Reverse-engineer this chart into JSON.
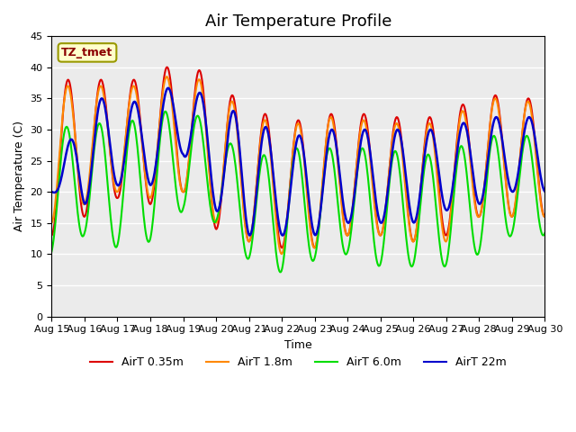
{
  "title": "Air Temperature Profile",
  "xlabel": "Time",
  "ylabel": "Air Temperature (C)",
  "annotation": "TZ_tmet",
  "ylim": [
    0,
    45
  ],
  "yticks": [
    0,
    5,
    10,
    15,
    20,
    25,
    30,
    35,
    40,
    45
  ],
  "xtick_labels": [
    "Aug 15",
    "Aug 16",
    "Aug 17",
    "Aug 18",
    "Aug 19",
    "Aug 20",
    "Aug 21",
    "Aug 22",
    "Aug 23",
    "Aug 24",
    "Aug 25",
    "Aug 26",
    "Aug 27",
    "Aug 28",
    "Aug 29",
    "Aug 30"
  ],
  "colors": {
    "AirT 0.35m": "#DD0000",
    "AirT 1.8m": "#FF8800",
    "AirT 6.0m": "#00DD00",
    "AirT 22m": "#0000CC"
  },
  "legend_labels": [
    "AirT 0.35m",
    "AirT 1.8m",
    "AirT 6.0m",
    "AirT 22m"
  ],
  "legend_colors": [
    "#DD0000",
    "#FF8800",
    "#00DD00",
    "#0000CC"
  ],
  "plot_bg": "#EBEBEB",
  "title_fontsize": 13,
  "label_fontsize": 9,
  "tick_fontsize": 8,
  "peaks_035": [
    38,
    38,
    38,
    38,
    42,
    37,
    34,
    31,
    32,
    33,
    32,
    32,
    32,
    36,
    35,
    35
  ],
  "troughs_035": [
    13,
    16,
    19,
    18,
    20,
    14,
    12,
    11,
    11,
    13,
    13,
    12,
    13,
    16,
    16,
    16
  ],
  "peaks_18": [
    37,
    37,
    37,
    37,
    40,
    36,
    33,
    30,
    32,
    32,
    31,
    31,
    31,
    35,
    35,
    34
  ],
  "troughs_18": [
    15,
    18,
    20,
    19,
    20,
    15,
    12,
    10,
    11,
    13,
    13,
    12,
    12,
    16,
    16,
    16
  ],
  "peaks_60": [
    30,
    31,
    31,
    32,
    34,
    30,
    25,
    27,
    27,
    27,
    27,
    26,
    26,
    29,
    29,
    29
  ],
  "troughs_60": [
    10,
    13,
    11,
    12,
    17,
    15,
    9,
    7,
    9,
    10,
    8,
    8,
    8,
    10,
    13,
    13
  ],
  "peaks_22": [
    20,
    35,
    35,
    34,
    39,
    33,
    33,
    28,
    30,
    30,
    30,
    30,
    30,
    32,
    32,
    32
  ],
  "troughs_22": [
    20,
    18,
    21,
    21,
    26,
    17,
    13,
    13,
    13,
    15,
    15,
    15,
    17,
    18,
    20,
    20
  ],
  "phase_035": 0.0,
  "phase_18": 0.05,
  "phase_60": 0.3,
  "phase_22": -0.15
}
